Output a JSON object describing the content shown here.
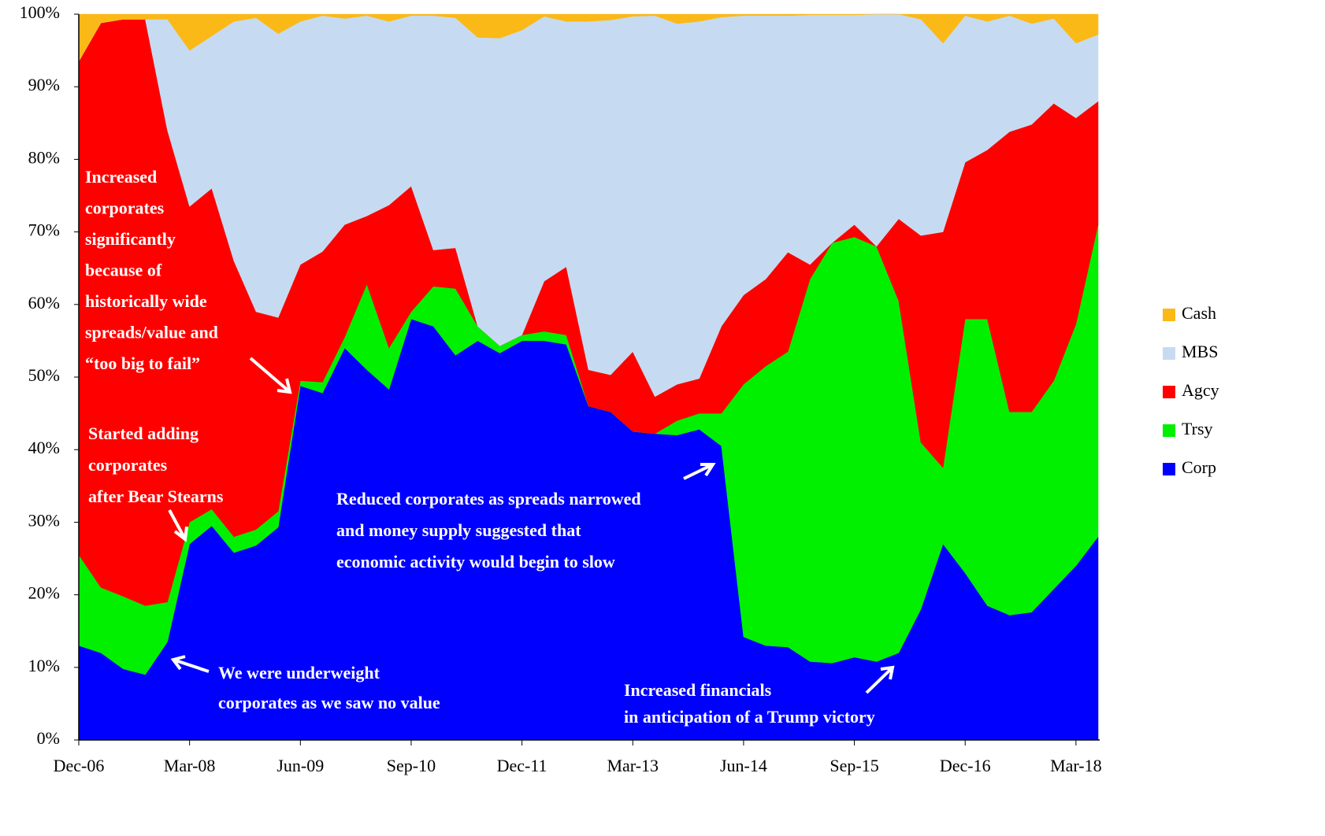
{
  "chart_data": {
    "type": "stacked_area",
    "categories": [
      "Dec-06",
      null,
      null,
      null,
      null,
      "Mar-08",
      null,
      null,
      null,
      null,
      "Jun-09",
      null,
      null,
      null,
      null,
      "Sep-10",
      null,
      null,
      null,
      null,
      "Dec-11",
      null,
      null,
      null,
      null,
      "Mar-13",
      null,
      null,
      null,
      null,
      "Jun-14",
      null,
      null,
      null,
      null,
      "Sep-15",
      null,
      null,
      null,
      null,
      "Dec-16",
      null,
      null,
      null,
      null,
      "Mar-18",
      null
    ],
    "series": [
      {
        "name": "Corp",
        "color": "#0000ff",
        "values": [
          13,
          12,
          9.8,
          9,
          13.5,
          27,
          29.5,
          25.8,
          26.8,
          29.3,
          48.8,
          47.8,
          54,
          51,
          48.3,
          58,
          57,
          53,
          55,
          53.3,
          55,
          55,
          54.5,
          46,
          45.2,
          42.5,
          42.2,
          42,
          42.8,
          40.5,
          14.2,
          13,
          12.8,
          10.8,
          10.6,
          11.4,
          10.8,
          12,
          18,
          27,
          23,
          18.5,
          17.2,
          17.6,
          20.8,
          24,
          28
        ]
      },
      {
        "name": "Trsy",
        "color": "#00f000",
        "values": [
          12.5,
          9,
          10,
          9.5,
          5.5,
          3,
          2.3,
          2.2,
          2.2,
          2.2,
          0.7,
          1.5,
          1.5,
          11.8,
          5.7,
          1,
          5.5,
          9.2,
          2,
          1,
          0.8,
          1.3,
          1.3,
          0,
          0,
          0,
          0,
          2,
          2.2,
          4.5,
          34.8,
          38.5,
          40.7,
          52.7,
          57.9,
          57.9,
          57.2,
          48.5,
          23,
          10.5,
          35,
          39.5,
          28,
          27.6,
          28.7,
          33.3,
          43
        ]
      },
      {
        "name": "Agcy",
        "color": "#ff0000",
        "values": [
          68,
          77.8,
          79.5,
          80.8,
          65,
          43.5,
          44.2,
          38,
          30,
          26.7,
          16,
          18,
          15.5,
          9.4,
          19.7,
          17.3,
          5,
          5.6,
          0,
          0,
          0,
          6.9,
          9.4,
          5,
          5.1,
          11,
          5.1,
          5,
          4.8,
          12,
          12.3,
          12,
          13.7,
          2,
          0,
          1.7,
          0,
          11.3,
          28.5,
          32.5,
          21.6,
          23.3,
          38.6,
          39.6,
          38.2,
          28.4,
          17
        ]
      },
      {
        "name": "MBS",
        "color": "#c6dbf1",
        "values": [
          0,
          0,
          0,
          0,
          15.3,
          21.5,
          21,
          33,
          40.5,
          39.1,
          33.5,
          32.5,
          28.4,
          27.6,
          25.3,
          23.5,
          32.3,
          31.7,
          39.8,
          42.4,
          42,
          36.5,
          33.8,
          48,
          48.9,
          46.2,
          52.5,
          49.7,
          49.2,
          42.6,
          38.5,
          36.3,
          32.6,
          34.4,
          31.4,
          28.9,
          32,
          28.2,
          29.8,
          26,
          20.2,
          17.7,
          16,
          13.9,
          11.7,
          10.3,
          9.2
        ]
      },
      {
        "name": "Cash",
        "color": "#fbb917",
        "values": [
          6.5,
          1.2,
          0.7,
          0.7,
          0.7,
          5,
          3,
          1,
          0.5,
          2.7,
          1,
          0.2,
          0.6,
          0.2,
          1,
          0.2,
          0.2,
          0.5,
          3.2,
          3.3,
          2.2,
          0.3,
          1,
          1,
          0.8,
          0.3,
          0.2,
          1.3,
          1,
          0.4,
          0.2,
          0.2,
          0.2,
          0.1,
          0.1,
          0.1,
          0,
          0,
          0.7,
          4,
          0.2,
          1,
          0.2,
          1.3,
          0.6,
          4,
          2.8
        ]
      }
    ],
    "ylim": [
      0,
      100
    ],
    "yticks": [
      {
        "value": 0,
        "label": "0%"
      },
      {
        "value": 10,
        "label": "10%"
      },
      {
        "value": 20,
        "label": "20%"
      },
      {
        "value": 30,
        "label": "30%"
      },
      {
        "value": 40,
        "label": "40%"
      },
      {
        "value": 50,
        "label": "50%"
      },
      {
        "value": 60,
        "label": "60%"
      },
      {
        "value": 70,
        "label": "70%"
      },
      {
        "value": 80,
        "label": "80%"
      },
      {
        "value": 90,
        "label": "90%"
      },
      {
        "value": 100,
        "label": "100%"
      }
    ],
    "legend": "right",
    "annotations": [
      [
        "Increased",
        "corporates",
        "significantly",
        "because of",
        "historically wide",
        "spreads/value and",
        "“too big to fail”"
      ],
      [
        "Started adding",
        "corporates",
        "after Bear Stearns"
      ],
      [
        "Reduced corporates as spreads narrowed",
        "and money supply suggested that",
        "economic activity would begin to slow"
      ],
      [
        "We were underweight",
        "corporates as we saw no value"
      ],
      [
        "Increased financials",
        "in anticipation of a Trump victory"
      ]
    ]
  }
}
